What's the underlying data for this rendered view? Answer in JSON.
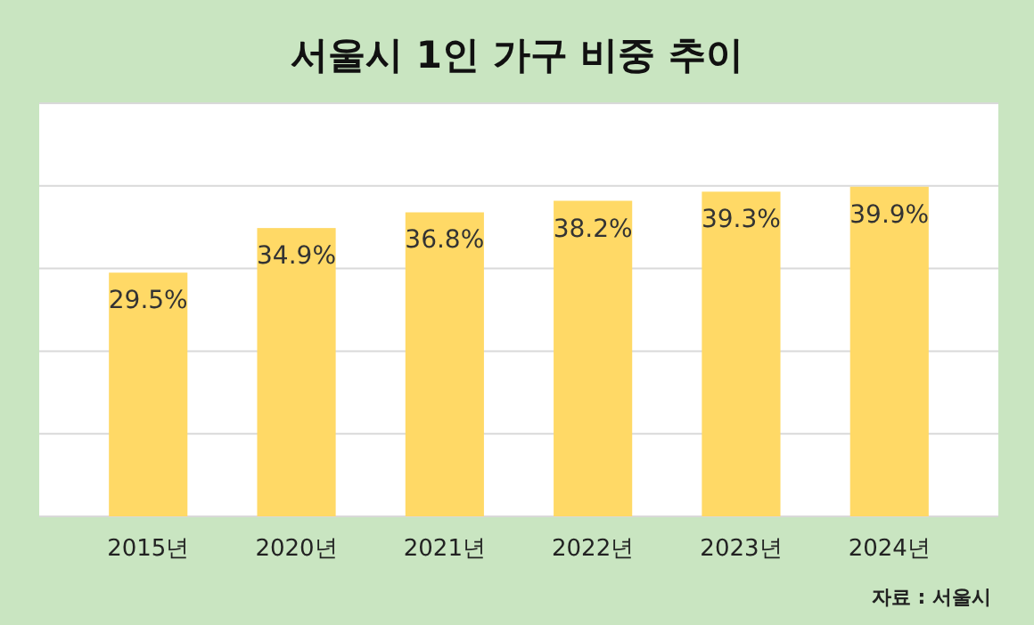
{
  "chart_data": {
    "type": "bar",
    "title": "서울시 1인 가구 비중 추이",
    "categories": [
      "2015년",
      "2020년",
      "2021년",
      "2022년",
      "2023년",
      "2024년"
    ],
    "values": [
      29.5,
      34.9,
      36.8,
      38.2,
      39.3,
      39.9
    ],
    "value_labels": [
      "29.5%",
      "34.9%",
      "36.8%",
      "38.2%",
      "39.3%",
      "39.9%"
    ],
    "color": "#ffd966",
    "ylim": [
      0,
      50
    ],
    "yticks": [
      {
        "value": 0,
        "label": null
      },
      {
        "value": 10,
        "label": null
      },
      {
        "value": 20,
        "label": null
      },
      {
        "value": 30,
        "label": null
      },
      {
        "value": 40,
        "label": null
      },
      {
        "value": 50,
        "label": null
      }
    ],
    "tick_labels": "x",
    "grid": "y",
    "annotations": [
      "자료 : 서울시"
    ]
  }
}
